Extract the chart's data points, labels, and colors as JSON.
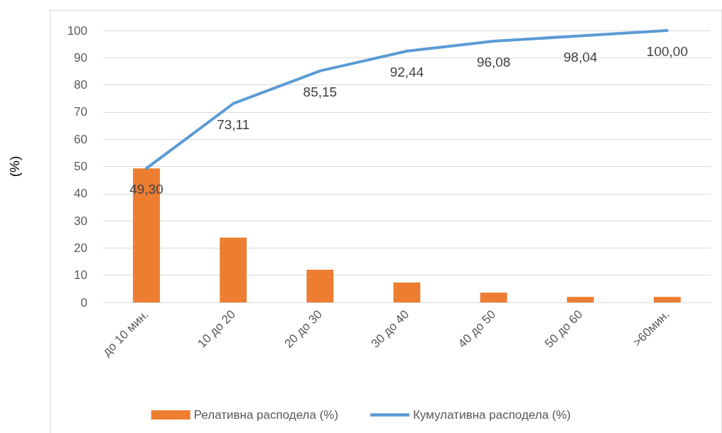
{
  "chart_data": {
    "type": "bar",
    "ylabel": "(%)",
    "categories": [
      "до 10 мин.",
      "10 до 20",
      "20 до 30",
      "30 до 40",
      "40 до 50",
      "50 до 60",
      ">60мин."
    ],
    "series": [
      {
        "name": "Релативна расподела (%)",
        "color": "#ed7d31",
        "values": [
          49.3,
          23.8,
          12.0,
          7.3,
          3.6,
          2.0,
          2.0
        ]
      },
      {
        "name": "Кумулативна расподела (%)",
        "type": "line",
        "color": "#5b9bd5",
        "values": [
          49.3,
          73.11,
          85.15,
          92.44,
          96.08,
          98.04,
          100.0
        ],
        "value_labels": [
          "49,30",
          "73,11",
          "85,15",
          "92,44",
          "96,08",
          "98,04",
          "100,00"
        ]
      }
    ],
    "ylim": [
      0,
      100
    ],
    "yticks": [
      0,
      10,
      20,
      30,
      40,
      50,
      60,
      70,
      80,
      90,
      100
    ],
    "grid": "y",
    "legend": "bottom",
    "marker": "none"
  }
}
